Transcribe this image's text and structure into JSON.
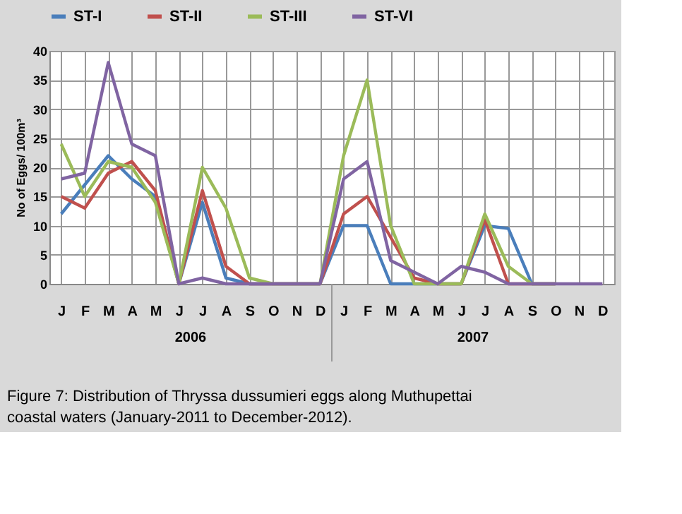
{
  "chart_data": {
    "type": "line",
    "ylabel": "No of Eggs/ 100m³",
    "categories": [
      "J",
      "F",
      "M",
      "A",
      "M",
      "J",
      "J",
      "A",
      "S",
      "O",
      "N",
      "D",
      "J",
      "F",
      "M",
      "A",
      "M",
      "J",
      "J",
      "A",
      "S",
      "O",
      "N",
      "D"
    ],
    "series": [
      {
        "name": "ST-I",
        "color": "#4a7ebb",
        "values": [
          12,
          17,
          22,
          18,
          15,
          0,
          14,
          1,
          0,
          0,
          0,
          0,
          10,
          10,
          0,
          0,
          0,
          0,
          10,
          9.5,
          0,
          0,
          null,
          null
        ]
      },
      {
        "name": "ST-II",
        "color": "#c0504d",
        "values": [
          15,
          13,
          19,
          21,
          16,
          0,
          16,
          3,
          0,
          0,
          0,
          0,
          12,
          15,
          8,
          1,
          0,
          0,
          11,
          0,
          0,
          0,
          null,
          null
        ]
      },
      {
        "name": "ST-III",
        "color": "#9bbb59",
        "values": [
          24,
          15,
          21,
          20,
          14,
          0,
          20,
          13,
          1,
          0,
          0,
          0,
          22,
          35,
          10,
          0,
          0,
          0,
          12,
          3,
          0,
          0,
          null,
          null
        ]
      },
      {
        "name": "ST-VI",
        "color": "#8064a2",
        "values": [
          18,
          19,
          38,
          24,
          22,
          0,
          1,
          0,
          0,
          0,
          0,
          0,
          18,
          21,
          4,
          2,
          0,
          3,
          2,
          0,
          0,
          0,
          0,
          0
        ]
      }
    ],
    "ylim": [
      0,
      40
    ],
    "yticks": [
      0,
      5,
      10,
      15,
      20,
      25,
      30,
      35,
      40
    ],
    "grid": true,
    "legend": "top",
    "line_style": "solid",
    "marker": "none",
    "annotations": [
      "2006",
      "2007",
      "Figure 7: Distribution of Thryssa dussumieri eggs along Muthupettai coastal waters (January-2011 to December-2012)."
    ]
  }
}
